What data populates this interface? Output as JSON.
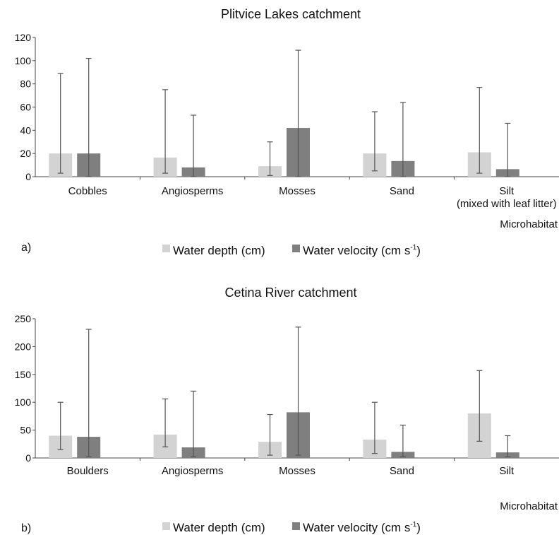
{
  "colors": {
    "water_depth": "#d3d3d3",
    "water_velocity": "#7f7f7f",
    "error_bar": "#555555",
    "axis": "#444444"
  },
  "chart_data": [
    {
      "type": "bar",
      "panel_label": "a)",
      "title": "Plitvice Lakes catchment",
      "xlabel": "Microhabitat",
      "ylabel": "",
      "ylim": [
        0,
        120
      ],
      "yticks": [
        0,
        20,
        40,
        60,
        80,
        100,
        120
      ],
      "categories": [
        [
          "Cobbles"
        ],
        [
          "Angiosperms"
        ],
        [
          "Mosses"
        ],
        [
          "Sand"
        ],
        [
          "Silt",
          "(mixed with leaf litter)"
        ]
      ],
      "error_bars": true,
      "legend_position": "bottom",
      "series": [
        {
          "name": "Water depth (cm)",
          "values": [
            20,
            16.5,
            9,
            20,
            21
          ],
          "err_low": [
            3,
            3,
            1,
            5,
            3
          ],
          "err_high": [
            89,
            75,
            30,
            56,
            77
          ]
        },
        {
          "name": "Water velocity (cm s-1)",
          "name_parts": [
            "Water velocity (cm s",
            "-1",
            ")"
          ],
          "values": [
            20,
            8,
            42,
            13.5,
            6.5
          ],
          "err_low": [
            0,
            0,
            0,
            0,
            0
          ],
          "err_high": [
            102,
            53,
            109,
            64,
            46
          ]
        }
      ]
    },
    {
      "type": "bar",
      "panel_label": "b)",
      "title": "Cetina River catchment",
      "xlabel": "Microhabitat",
      "ylabel": "",
      "ylim": [
        0,
        250
      ],
      "yticks": [
        0,
        50,
        100,
        150,
        200,
        250
      ],
      "categories": [
        [
          "Boulders"
        ],
        [
          "Angiosperms"
        ],
        [
          "Mosses"
        ],
        [
          "Sand"
        ],
        [
          "Silt"
        ]
      ],
      "error_bars": true,
      "legend_position": "bottom",
      "series": [
        {
          "name": "Water depth (cm)",
          "values": [
            40,
            42,
            29,
            33,
            80
          ],
          "err_low": [
            15,
            20,
            5,
            8,
            30
          ],
          "err_high": [
            100,
            106,
            78,
            100,
            157
          ]
        },
        {
          "name": "Water velocity (cm s-1)",
          "name_parts": [
            "Water velocity (cm s",
            "-1",
            ")"
          ],
          "values": [
            38,
            19,
            82,
            11,
            10
          ],
          "err_low": [
            2,
            2,
            5,
            2,
            2
          ],
          "err_high": [
            231,
            120,
            235,
            59,
            40
          ]
        }
      ]
    }
  ]
}
